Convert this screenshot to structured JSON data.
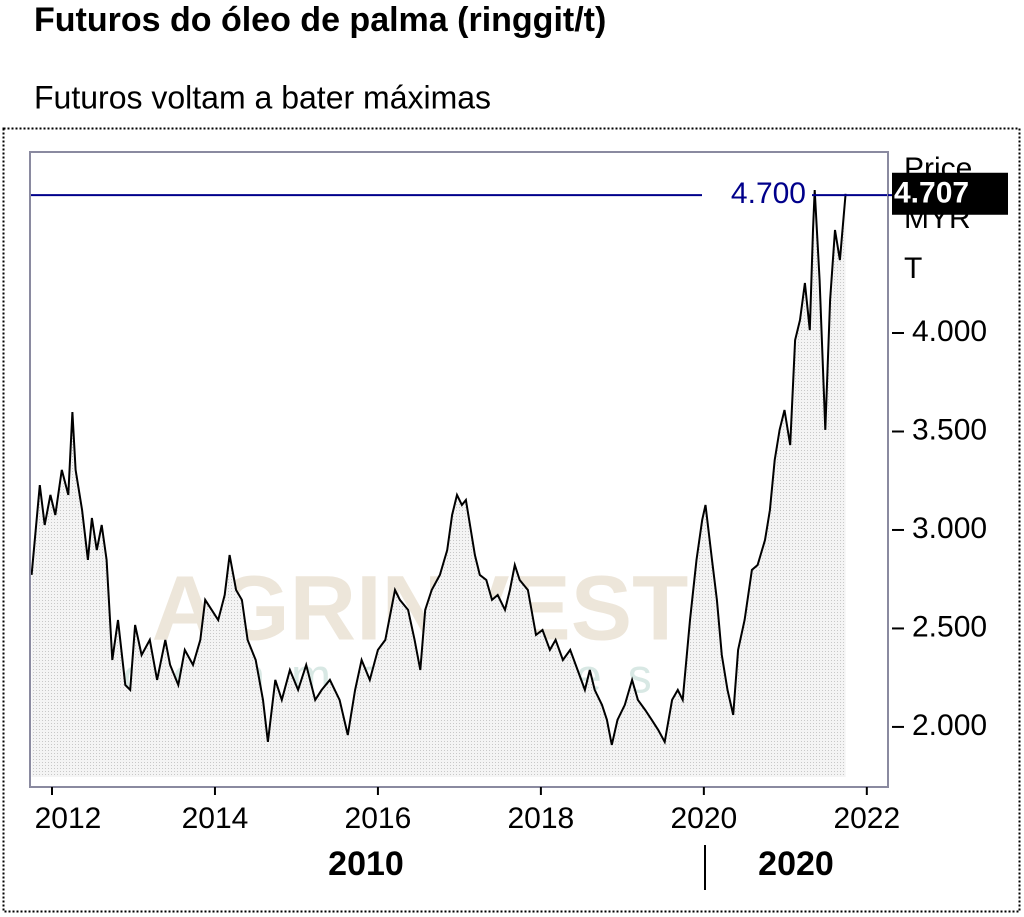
{
  "chart_data": {
    "type": "line",
    "title": "Futuros do óleo de palma (ringgit/t)",
    "subtitle": "Futuros voltam a bater máximas",
    "y_label_lines": [
      "Price",
      "MYR",
      "T"
    ],
    "watermark": [
      "AGRINVEST",
      "commodities"
    ],
    "x_groups": [
      "2010",
      "2020"
    ],
    "xlim": [
      2011.73,
      2022.26
    ],
    "xticks": [
      2012,
      2014,
      2016,
      2018,
      2020,
      2022
    ],
    "ylim": [
      1695,
      4919
    ],
    "yticks": [
      {
        "value": 2000,
        "label": "2.000"
      },
      {
        "value": 2500,
        "label": "2.500"
      },
      {
        "value": 3000,
        "label": "3.000"
      },
      {
        "value": 3500,
        "label": "3.500"
      },
      {
        "value": 4000,
        "label": "4.000"
      }
    ],
    "reference_line": {
      "value": 4700,
      "label": "4.700",
      "color": "#00008b"
    },
    "last_value_label": "4.707",
    "series": [
      {
        "name": "Price",
        "color": "#000000",
        "x": [
          2011.75,
          2011.85,
          2011.91,
          2011.98,
          2012.04,
          2012.12,
          2012.2,
          2012.25,
          2012.29,
          2012.37,
          2012.44,
          2012.49,
          2012.55,
          2012.61,
          2012.67,
          2012.74,
          2012.81,
          2012.9,
          2012.96,
          2013.02,
          2013.1,
          2013.2,
          2013.29,
          2013.39,
          2013.45,
          2013.55,
          2013.63,
          2013.73,
          2013.82,
          2013.88,
          2013.96,
          2014.04,
          2014.12,
          2014.18,
          2014.26,
          2014.33,
          2014.4,
          2014.5,
          2014.59,
          2014.65,
          2014.74,
          2014.82,
          2014.92,
          2015.02,
          2015.12,
          2015.23,
          2015.31,
          2015.41,
          2015.53,
          2015.63,
          2015.72,
          2015.8,
          2015.9,
          2016,
          2016.09,
          2016.21,
          2016.27,
          2016.37,
          2016.45,
          2016.52,
          2016.58,
          2016.66,
          2016.76,
          2016.85,
          2016.91,
          2016.97,
          2017.03,
          2017.08,
          2017.13,
          2017.19,
          2017.25,
          2017.33,
          2017.4,
          2017.47,
          2017.56,
          2017.62,
          2017.68,
          2017.74,
          2017.84,
          2017.94,
          2018.02,
          2018.11,
          2018.18,
          2018.27,
          2018.36,
          2018.45,
          2018.54,
          2018.6,
          2018.66,
          2018.75,
          2018.81,
          2018.87,
          2018.94,
          2019.03,
          2019.12,
          2019.19,
          2019.28,
          2019.36,
          2019.44,
          2019.52,
          2019.61,
          2019.68,
          2019.74,
          2019.83,
          2019.91,
          2019.98,
          2020.02,
          2020.1,
          2020.16,
          2020.22,
          2020.29,
          2020.36,
          2020.42,
          2020.5,
          2020.59,
          2020.66,
          2020.75,
          2020.81,
          2020.87,
          2020.93,
          2020.99,
          2021.06,
          2021.12,
          2021.18,
          2021.24,
          2021.3,
          2021.34,
          2021.36,
          2021.42,
          2021.49,
          2021.55,
          2021.61,
          2021.67,
          2021.74
        ],
        "values": [
          2772,
          3228,
          3025,
          3178,
          3076,
          3305,
          3178,
          3599,
          3305,
          3101,
          2848,
          3061,
          2898,
          3025,
          2848,
          2340,
          2543,
          2213,
          2188,
          2518,
          2365,
          2442,
          2239,
          2442,
          2315,
          2213,
          2391,
          2315,
          2442,
          2645,
          2594,
          2543,
          2670,
          2873,
          2695,
          2645,
          2442,
          2340,
          2137,
          1924,
          2239,
          2137,
          2289,
          2188,
          2315,
          2137,
          2188,
          2239,
          2137,
          1959,
          2188,
          2340,
          2239,
          2391,
          2442,
          2695,
          2645,
          2594,
          2442,
          2289,
          2594,
          2695,
          2772,
          2898,
          3076,
          3178,
          3127,
          3152,
          3025,
          2873,
          2772,
          2746,
          2645,
          2670,
          2594,
          2695,
          2822,
          2746,
          2695,
          2467,
          2492,
          2391,
          2442,
          2340,
          2391,
          2289,
          2188,
          2289,
          2188,
          2112,
          2036,
          1909,
          2036,
          2112,
          2239,
          2137,
          2086,
          2036,
          1985,
          1924,
          2137,
          2188,
          2137,
          2543,
          2848,
          3051,
          3127,
          2848,
          2645,
          2365,
          2188,
          2061,
          2391,
          2543,
          2797,
          2822,
          2949,
          3101,
          3355,
          3508,
          3609,
          3431,
          3964,
          4066,
          4254,
          4015,
          4523,
          4726,
          4269,
          3508,
          4167,
          4523,
          4370,
          4707
        ]
      }
    ]
  }
}
